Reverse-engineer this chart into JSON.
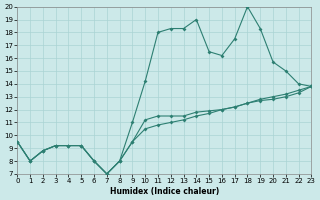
{
  "xlabel": "Humidex (Indice chaleur)",
  "xlim": [
    0,
    23
  ],
  "ylim": [
    7,
    20
  ],
  "xticks": [
    0,
    1,
    2,
    3,
    4,
    5,
    6,
    7,
    8,
    9,
    10,
    11,
    12,
    13,
    14,
    15,
    16,
    17,
    18,
    19,
    20,
    21,
    22,
    23
  ],
  "yticks": [
    7,
    8,
    9,
    10,
    11,
    12,
    13,
    14,
    15,
    16,
    17,
    18,
    19,
    20
  ],
  "bg_color": "#cce9e9",
  "line_color": "#2d7f72",
  "grid_color": "#aad4d4",
  "line1_y": [
    9.5,
    8.0,
    8.8,
    9.2,
    9.2,
    9.2,
    8.0,
    7.0,
    8.0,
    9.5,
    10.5,
    10.8,
    11.0,
    11.2,
    11.5,
    11.7,
    12.0,
    12.2,
    12.5,
    12.7,
    12.8,
    13.0,
    13.3,
    13.8
  ],
  "line2_y": [
    9.5,
    8.0,
    8.8,
    9.2,
    9.2,
    9.2,
    8.0,
    7.0,
    8.0,
    11.0,
    14.2,
    18.0,
    18.3,
    18.3,
    19.0,
    16.5,
    16.2,
    17.5,
    20.0,
    18.3,
    15.7,
    15.0,
    14.0,
    13.8
  ],
  "line3_y": [
    9.5,
    8.0,
    8.8,
    9.2,
    9.2,
    9.2,
    8.0,
    7.0,
    8.0,
    9.5,
    11.2,
    11.5,
    11.5,
    11.5,
    11.8,
    11.9,
    12.0,
    12.2,
    12.5,
    12.8,
    13.0,
    13.2,
    13.5,
    13.8
  ]
}
